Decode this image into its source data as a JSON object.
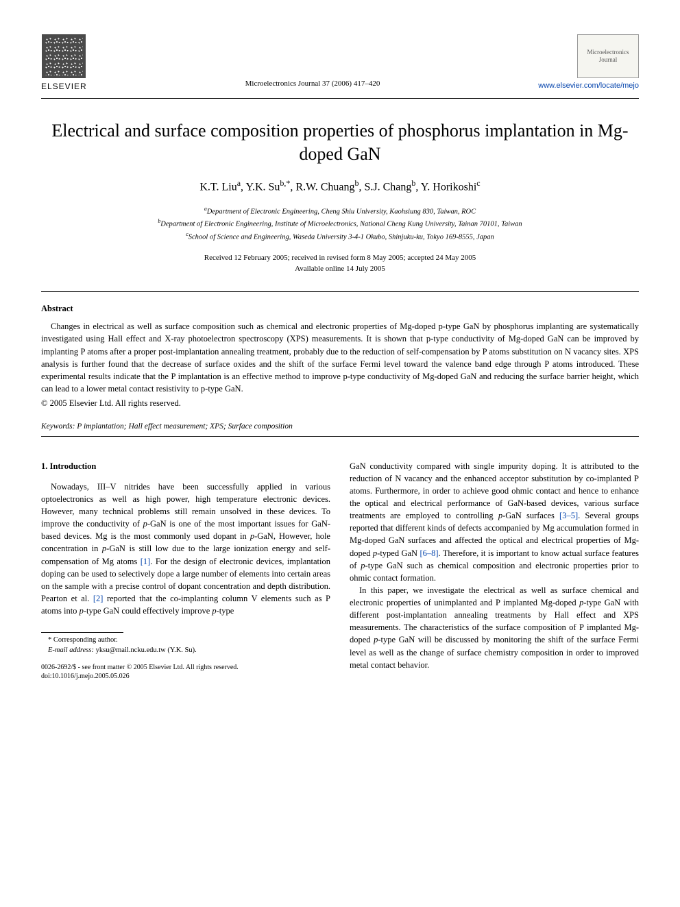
{
  "header": {
    "publisher": "ELSEVIER",
    "citation": "Microelectronics Journal 37 (2006) 417–420",
    "journal_name_line1": "Microelectronics",
    "journal_name_line2": "Journal",
    "journal_url": "www.elsevier.com/locate/mejo"
  },
  "title": "Electrical and surface composition properties of phosphorus implantation in Mg-doped GaN",
  "authors_html": "K.T. Liu<sup>a</sup>, Y.K. Su<sup>b,*</sup>, R.W. Chuang<sup>b</sup>, S.J. Chang<sup>b</sup>, Y. Horikoshi<sup>c</sup>",
  "affiliations": {
    "a": "Department of Electronic Engineering, Cheng Shiu University, Kaohsiung 830, Taiwan, ROC",
    "b": "Department of Electronic Engineering, Institute of Microelectronics, National Cheng Kung University, Tainan 70101, Taiwan",
    "c": "School of Science and Engineering, Waseda University 3-4-1 Okubo, Shinjuku-ku, Tokyo 169-8555, Japan"
  },
  "dates": {
    "received": "Received 12 February 2005; received in revised form 8 May 2005; accepted 24 May 2005",
    "online": "Available online 14 July 2005"
  },
  "abstract": {
    "heading": "Abstract",
    "body": "Changes in electrical as well as surface composition such as chemical and electronic properties of Mg-doped p-type GaN by phosphorus implanting are systematically investigated using Hall effect and X-ray photoelectron spectroscopy (XPS) measurements. It is shown that p-type conductivity of Mg-doped GaN can be improved by implanting P atoms after a proper post-implantation annealing treatment, probably due to the reduction of self-compensation by P atoms substitution on N vacancy sites. XPS analysis is further found that the decrease of surface oxides and the shift of the surface Fermi level toward the valence band edge through P atoms introduced. These experimental results indicate that the P implantation is an effective method to improve p-type conductivity of Mg-doped GaN and reducing the surface barrier height, which can lead to a lower metal contact resistivity to p-type GaN.",
    "copyright": "© 2005 Elsevier Ltd. All rights reserved."
  },
  "keywords": {
    "label": "Keywords:",
    "text": "P implantation; Hall effect measurement; XPS; Surface composition"
  },
  "introduction": {
    "heading": "1. Introduction",
    "col1_p1_a": "Nowadays, III–V nitrides have been successfully applied in various optoelectronics as well as high power, high temperature electronic devices. However, many technical problems still remain unsolved in these devices. To improve the conductivity of ",
    "col1_p1_b": "-GaN is one of the most important issues for GaN-based devices. Mg is the most commonly used dopant in ",
    "col1_p1_c": "-GaN, However, hole concentration in ",
    "col1_p1_d": "-GaN is still low due to the large ionization energy and self-compensation of Mg atoms ",
    "col1_p1_e": ". For the design of electronic devices, implantation doping can be used to selectively dope a large number of elements into certain areas on the sample with a precise control of dopant concentration and depth distribution. Pearton et al. ",
    "col1_p1_f": " reported that the co-implanting column V elements such as P atoms into ",
    "col1_p1_g": "-type GaN could effectively improve ",
    "col1_p1_h": "-type",
    "ref1": "[1]",
    "ref2": "[2]",
    "col2_p1_a": "GaN conductivity compared with single impurity doping. It is attributed to the reduction of N vacancy and the enhanced acceptor substitution by co-implanted P atoms. Furthermore, in order to achieve good ohmic contact and hence to enhance the optical and electrical performance of GaN-based devices, various surface treatments are employed to controlling ",
    "col2_p1_b": "-GaN surfaces ",
    "col2_p1_c": ". Several groups reported that different kinds of defects accompanied by Mg accumulation formed in Mg-doped GaN surfaces and affected the optical and electrical properties of Mg-doped ",
    "col2_p1_d": "-typed GaN ",
    "col2_p1_e": ". Therefore, it is important to know actual surface features of ",
    "col2_p1_f": "-type GaN such as chemical composition and electronic properties prior to ohmic contact formation.",
    "ref35": "[3–5]",
    "ref68": "[6–8]",
    "col2_p2_a": "In this paper, we investigate the electrical as well as surface chemical and electronic properties of unimplanted and P implanted Mg-doped ",
    "col2_p2_b": "-type GaN with different post-implantation annealing treatments by Hall effect and XPS measurements. The characteristics of the surface composition of P implanted Mg-doped ",
    "col2_p2_c": "-type GaN will be discussed by monitoring the shift of the surface Fermi level as well as the change of surface chemistry composition in order to improved metal contact behavior."
  },
  "footnote": {
    "corresponding": "* Corresponding author.",
    "email_label": "E-mail address:",
    "email": "yksu@mail.ncku.edu.tw (Y.K. Su)."
  },
  "doi": {
    "line1": "0026-2692/$ - see front matter © 2005 Elsevier Ltd. All rights reserved.",
    "line2": "doi:10.1016/j.mejo.2005.05.026"
  },
  "colors": {
    "link": "#0645ad",
    "text": "#000000",
    "background": "#ffffff"
  }
}
